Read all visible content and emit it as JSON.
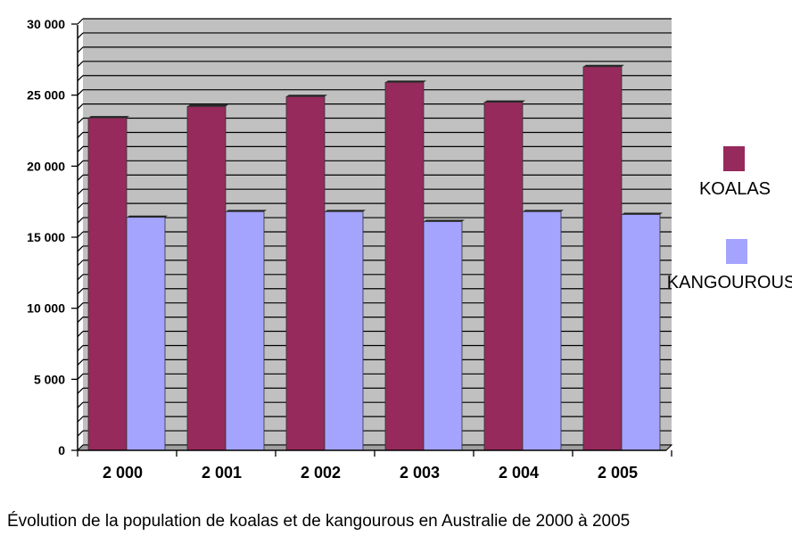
{
  "chart_data": {
    "type": "bar",
    "categories": [
      "2 000",
      "2 001",
      "2 002",
      "2 003",
      "2 004",
      "2 005"
    ],
    "series": [
      {
        "name": "KOALAS",
        "color": "#962a5c",
        "values": [
          23400,
          24200,
          24900,
          25900,
          24500,
          27000
        ]
      },
      {
        "name": "KANGOUROUS",
        "color": "#a4a4ff",
        "values": [
          16400,
          16800,
          16800,
          16100,
          16800,
          16600
        ]
      }
    ],
    "ylim": [
      0,
      30000
    ],
    "yticks": [
      0,
      5000,
      10000,
      15000,
      20000,
      25000,
      30000
    ],
    "ytick_labels": [
      "0",
      "5 000",
      "10 000",
      "15 000",
      "20 000",
      "25 000",
      "30 000"
    ],
    "grid": true,
    "grid_step": 1000,
    "plot_background": "#c0c0c0",
    "legend": "right",
    "xlabel": "",
    "ylabel": "",
    "caption": "Évolution de la population de koalas et de kangourous en Australie de 2000 à 2005"
  }
}
